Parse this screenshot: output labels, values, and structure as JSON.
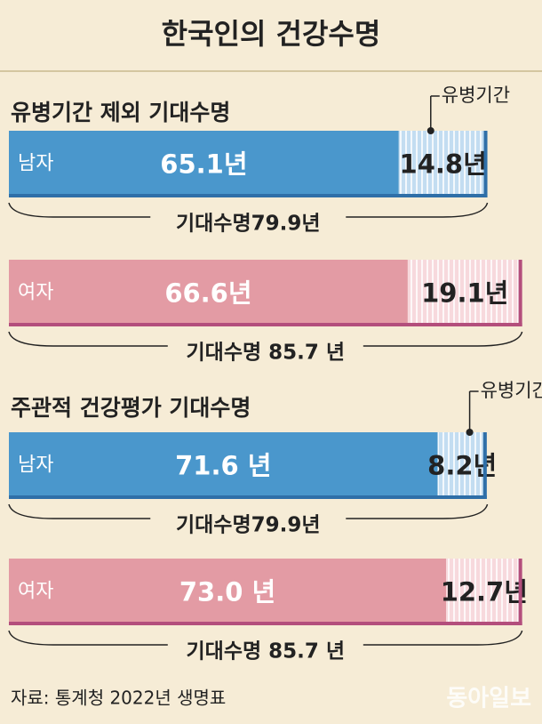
{
  "title": "한국인의 건강수명",
  "chart_data": [
    {
      "type": "stacked_bar",
      "title": "유병기간 제외 기대수명",
      "categories": [
        "남자",
        "여자"
      ],
      "edge_colors": [
        "#2f6fa8",
        "#b34e7c"
      ],
      "series": [
        {
          "colors": [
            "#4a97cc",
            "#e39ba4"
          ],
          "values": [
            65.1,
            66.6
          ],
          "value_labels": [
            "65.1년",
            "66.6년"
          ]
        },
        {
          "name": "유병기간",
          "colors": [
            "#c3ddf1",
            "#f7d9dd"
          ],
          "values": [
            14.8,
            19.1
          ],
          "value_labels": [
            "14.8년",
            "19.1년"
          ]
        }
      ],
      "totals": [
        79.9,
        85.7
      ],
      "total_labels": [
        "기대수명79.9년",
        "기대수명 85.7 년"
      ]
    },
    {
      "type": "stacked_bar",
      "title": "주관적 건강평가 기대수명",
      "categories": [
        "남자",
        "여자"
      ],
      "edge_colors": [
        "#2f6fa8",
        "#b34e7c"
      ],
      "series": [
        {
          "colors": [
            "#4a97cc",
            "#e39ba4"
          ],
          "values": [
            71.6,
            73.0
          ],
          "value_labels": [
            "71.6 년",
            "73.0 년"
          ]
        },
        {
          "name": "유병기간",
          "colors": [
            "#c3ddf1",
            "#f7d9dd"
          ],
          "values": [
            8.2,
            12.7
          ],
          "value_labels": [
            "8.2년",
            "12.7년"
          ]
        }
      ],
      "totals": [
        79.9,
        85.7
      ],
      "total_labels": [
        "기대수명79.9년",
        "기대수명 85.7 년"
      ]
    }
  ],
  "source": "자료: 통계청 2022년 생명표",
  "watermark": "동아일보"
}
